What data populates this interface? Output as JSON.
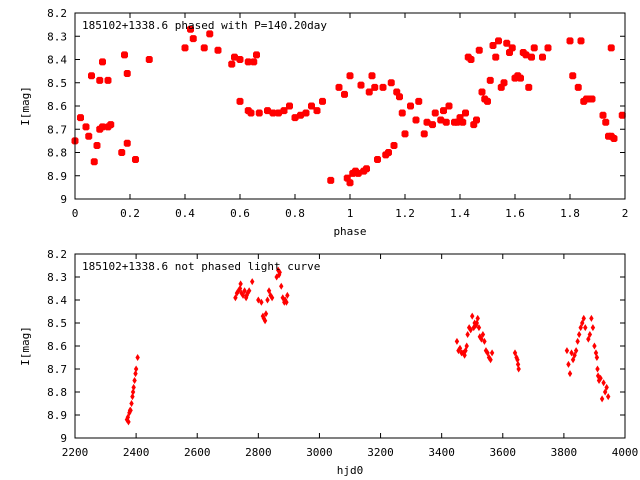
{
  "chart_data": [
    {
      "type": "scatter",
      "title": "185102+1338.6 phased with P=140.20day",
      "xlabel": "phase",
      "ylabel": "I[mag]",
      "xlim": [
        0,
        2
      ],
      "ylim": [
        9,
        8.2
      ],
      "y_inverted": true,
      "xticks": [
        "0",
        "0.2",
        "0.4",
        "0.6",
        "0.8",
        "1",
        "1.2",
        "1.4",
        "1.6",
        "1.8",
        "2"
      ],
      "yticks": [
        "8.2",
        "8.3",
        "8.4",
        "8.5",
        "8.6",
        "8.7",
        "8.8",
        "8.9",
        "9"
      ],
      "marker": "filled-square",
      "color": "#ff0000",
      "points": [
        [
          0.0,
          8.75
        ],
        [
          0.02,
          8.65
        ],
        [
          0.04,
          8.69
        ],
        [
          0.05,
          8.73
        ],
        [
          0.06,
          8.47
        ],
        [
          0.07,
          8.84
        ],
        [
          0.08,
          8.77
        ],
        [
          0.09,
          8.49
        ],
        [
          0.09,
          8.7
        ],
        [
          0.1,
          8.69
        ],
        [
          0.1,
          8.41
        ],
        [
          0.12,
          8.49
        ],
        [
          0.12,
          8.69
        ],
        [
          0.13,
          8.68
        ],
        [
          0.17,
          8.8
        ],
        [
          0.18,
          8.38
        ],
        [
          0.19,
          8.46
        ],
        [
          0.19,
          8.76
        ],
        [
          0.22,
          8.83
        ],
        [
          0.27,
          8.4
        ],
        [
          0.4,
          8.35
        ],
        [
          0.42,
          8.27
        ],
        [
          0.43,
          8.31
        ],
        [
          0.47,
          8.35
        ],
        [
          0.49,
          8.29
        ],
        [
          0.52,
          8.36
        ],
        [
          0.57,
          8.42
        ],
        [
          0.58,
          8.39
        ],
        [
          0.6,
          8.4
        ],
        [
          0.6,
          8.58
        ],
        [
          0.63,
          8.41
        ],
        [
          0.63,
          8.62
        ],
        [
          0.64,
          8.63
        ],
        [
          0.65,
          8.41
        ],
        [
          0.66,
          8.38
        ],
        [
          0.67,
          8.63
        ],
        [
          0.7,
          8.62
        ],
        [
          0.72,
          8.63
        ],
        [
          0.74,
          8.63
        ],
        [
          0.76,
          8.62
        ],
        [
          0.78,
          8.6
        ],
        [
          0.8,
          8.65
        ],
        [
          0.82,
          8.64
        ],
        [
          0.84,
          8.63
        ],
        [
          0.86,
          8.6
        ],
        [
          0.88,
          8.62
        ],
        [
          0.9,
          8.58
        ],
        [
          0.93,
          8.92
        ],
        [
          0.96,
          8.52
        ],
        [
          0.98,
          8.55
        ],
        [
          0.99,
          8.91
        ],
        [
          1.0,
          8.93
        ],
        [
          1.0,
          8.47
        ],
        [
          1.01,
          8.89
        ],
        [
          1.02,
          8.88
        ],
        [
          1.03,
          8.89
        ],
        [
          1.04,
          8.51
        ],
        [
          1.05,
          8.88
        ],
        [
          1.06,
          8.87
        ],
        [
          1.07,
          8.54
        ],
        [
          1.08,
          8.47
        ],
        [
          1.09,
          8.52
        ],
        [
          1.1,
          8.83
        ],
        [
          1.12,
          8.52
        ],
        [
          1.13,
          8.81
        ],
        [
          1.14,
          8.8
        ],
        [
          1.15,
          8.5
        ],
        [
          1.16,
          8.77
        ],
        [
          1.17,
          8.54
        ],
        [
          1.18,
          8.56
        ],
        [
          1.19,
          8.63
        ],
        [
          1.2,
          8.72
        ],
        [
          1.22,
          8.6
        ],
        [
          1.24,
          8.66
        ],
        [
          1.25,
          8.58
        ],
        [
          1.27,
          8.72
        ],
        [
          1.28,
          8.67
        ],
        [
          1.3,
          8.68
        ],
        [
          1.31,
          8.63
        ],
        [
          1.33,
          8.66
        ],
        [
          1.34,
          8.62
        ],
        [
          1.35,
          8.67
        ],
        [
          1.36,
          8.6
        ],
        [
          1.38,
          8.67
        ],
        [
          1.39,
          8.67
        ],
        [
          1.4,
          8.65
        ],
        [
          1.41,
          8.67
        ],
        [
          1.42,
          8.63
        ],
        [
          1.43,
          8.39
        ],
        [
          1.44,
          8.4
        ],
        [
          1.45,
          8.68
        ],
        [
          1.46,
          8.66
        ],
        [
          1.47,
          8.36
        ],
        [
          1.48,
          8.54
        ],
        [
          1.49,
          8.57
        ],
        [
          1.5,
          8.58
        ],
        [
          1.51,
          8.49
        ],
        [
          1.52,
          8.34
        ],
        [
          1.53,
          8.39
        ],
        [
          1.54,
          8.32
        ],
        [
          1.55,
          8.52
        ],
        [
          1.56,
          8.5
        ],
        [
          1.57,
          8.33
        ],
        [
          1.58,
          8.37
        ],
        [
          1.59,
          8.35
        ],
        [
          1.6,
          8.48
        ],
        [
          1.61,
          8.47
        ],
        [
          1.62,
          8.48
        ],
        [
          1.63,
          8.37
        ],
        [
          1.64,
          8.38
        ],
        [
          1.65,
          8.52
        ],
        [
          1.66,
          8.39
        ],
        [
          1.67,
          8.35
        ],
        [
          1.7,
          8.39
        ],
        [
          1.72,
          8.35
        ],
        [
          1.8,
          8.32
        ],
        [
          1.81,
          8.47
        ],
        [
          1.83,
          8.52
        ],
        [
          1.84,
          8.32
        ],
        [
          1.85,
          8.58
        ],
        [
          1.86,
          8.57
        ],
        [
          1.87,
          8.57
        ],
        [
          1.88,
          8.57
        ],
        [
          1.92,
          8.64
        ],
        [
          1.93,
          8.67
        ],
        [
          1.94,
          8.73
        ],
        [
          1.95,
          8.73
        ],
        [
          1.96,
          8.74
        ],
        [
          1.95,
          8.35
        ],
        [
          1.99,
          8.64
        ]
      ]
    },
    {
      "type": "scatter",
      "title": "185102+1338.6 not phased light curve",
      "xlabel": "hjd0",
      "ylabel": "I[mag]",
      "xlim": [
        2200,
        4000
      ],
      "ylim": [
        9,
        8.2
      ],
      "y_inverted": true,
      "xticks": [
        "2200",
        "2400",
        "2600",
        "2800",
        "3000",
        "3200",
        "3400",
        "3600",
        "3800",
        "4000"
      ],
      "yticks": [
        "8.2",
        "8.3",
        "8.4",
        "8.5",
        "8.6",
        "8.7",
        "8.8",
        "8.9",
        "9"
      ],
      "marker": "filled-diamond",
      "color": "#ff0000",
      "points": [
        [
          2370,
          8.92
        ],
        [
          2373,
          8.91
        ],
        [
          2375,
          8.93
        ],
        [
          2378,
          8.89
        ],
        [
          2380,
          8.88
        ],
        [
          2382,
          8.88
        ],
        [
          2385,
          8.85
        ],
        [
          2388,
          8.82
        ],
        [
          2390,
          8.8
        ],
        [
          2392,
          8.78
        ],
        [
          2395,
          8.75
        ],
        [
          2398,
          8.72
        ],
        [
          2400,
          8.7
        ],
        [
          2405,
          8.65
        ],
        [
          2725,
          8.39
        ],
        [
          2730,
          8.37
        ],
        [
          2735,
          8.36
        ],
        [
          2740,
          8.35
        ],
        [
          2742,
          8.33
        ],
        [
          2745,
          8.37
        ],
        [
          2750,
          8.38
        ],
        [
          2755,
          8.36
        ],
        [
          2760,
          8.39
        ],
        [
          2762,
          8.38
        ],
        [
          2765,
          8.37
        ],
        [
          2770,
          8.36
        ],
        [
          2780,
          8.32
        ],
        [
          2800,
          8.4
        ],
        [
          2810,
          8.41
        ],
        [
          2815,
          8.47
        ],
        [
          2818,
          8.48
        ],
        [
          2822,
          8.49
        ],
        [
          2825,
          8.46
        ],
        [
          2830,
          8.4
        ],
        [
          2835,
          8.36
        ],
        [
          2840,
          8.38
        ],
        [
          2845,
          8.39
        ],
        [
          2860,
          8.3
        ],
        [
          2865,
          8.27
        ],
        [
          2868,
          8.29
        ],
        [
          2870,
          8.28
        ],
        [
          2875,
          8.34
        ],
        [
          2880,
          8.39
        ],
        [
          2885,
          8.41
        ],
        [
          2888,
          8.4
        ],
        [
          2892,
          8.41
        ],
        [
          2895,
          8.38
        ],
        [
          3450,
          8.58
        ],
        [
          3455,
          8.62
        ],
        [
          3460,
          8.61
        ],
        [
          3465,
          8.63
        ],
        [
          3470,
          8.63
        ],
        [
          3475,
          8.64
        ],
        [
          3478,
          8.62
        ],
        [
          3482,
          8.6
        ],
        [
          3485,
          8.55
        ],
        [
          3490,
          8.52
        ],
        [
          3495,
          8.53
        ],
        [
          3500,
          8.47
        ],
        [
          3505,
          8.52
        ],
        [
          3508,
          8.5
        ],
        [
          3512,
          8.51
        ],
        [
          3515,
          8.5
        ],
        [
          3518,
          8.48
        ],
        [
          3522,
          8.52
        ],
        [
          3525,
          8.56
        ],
        [
          3530,
          8.57
        ],
        [
          3535,
          8.55
        ],
        [
          3540,
          8.58
        ],
        [
          3545,
          8.62
        ],
        [
          3550,
          8.63
        ],
        [
          3555,
          8.65
        ],
        [
          3560,
          8.66
        ],
        [
          3565,
          8.63
        ],
        [
          3640,
          8.63
        ],
        [
          3645,
          8.65
        ],
        [
          3648,
          8.66
        ],
        [
          3650,
          8.68
        ],
        [
          3652,
          8.7
        ],
        [
          3810,
          8.62
        ],
        [
          3815,
          8.68
        ],
        [
          3820,
          8.72
        ],
        [
          3825,
          8.63
        ],
        [
          3830,
          8.66
        ],
        [
          3835,
          8.64
        ],
        [
          3840,
          8.62
        ],
        [
          3845,
          8.58
        ],
        [
          3850,
          8.55
        ],
        [
          3855,
          8.52
        ],
        [
          3860,
          8.5
        ],
        [
          3865,
          8.48
        ],
        [
          3870,
          8.52
        ],
        [
          3880,
          8.57
        ],
        [
          3885,
          8.55
        ],
        [
          3890,
          8.48
        ],
        [
          3895,
          8.52
        ],
        [
          3900,
          8.6
        ],
        [
          3905,
          8.63
        ],
        [
          3908,
          8.65
        ],
        [
          3910,
          8.7
        ],
        [
          3912,
          8.73
        ],
        [
          3915,
          8.75
        ],
        [
          3920,
          8.74
        ],
        [
          3925,
          8.83
        ],
        [
          3930,
          8.76
        ],
        [
          3935,
          8.8
        ],
        [
          3940,
          8.78
        ],
        [
          3945,
          8.82
        ]
      ]
    }
  ]
}
